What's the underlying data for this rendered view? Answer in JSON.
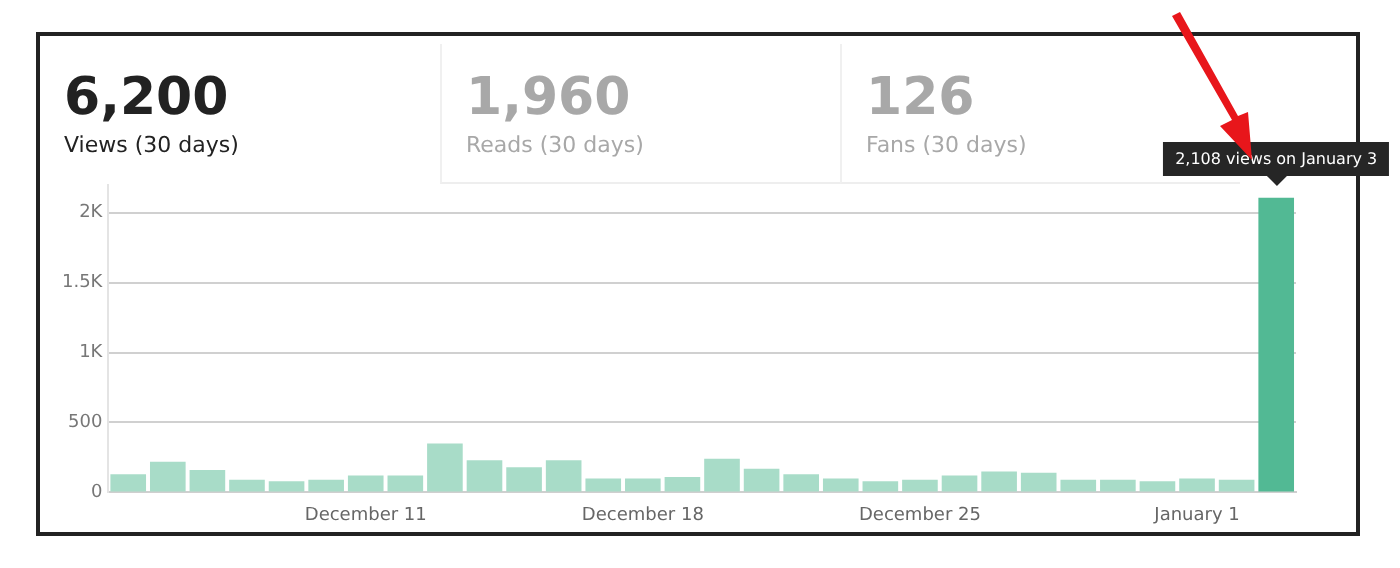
{
  "chart_data": [
    {
      "type": "other",
      "annotations": [
        "6,200",
        "Views (30 days)",
        "1,960",
        "Reads (30 days)",
        "126",
        "Fans (30 days)"
      ]
    },
    {
      "type": "bar",
      "categories": [
        null,
        null,
        null,
        null,
        null,
        null,
        "December 11",
        null,
        null,
        null,
        null,
        null,
        null,
        "December 18",
        null,
        null,
        null,
        null,
        null,
        null,
        "December 25",
        null,
        null,
        null,
        null,
        null,
        null,
        "January 1",
        null,
        null
      ],
      "values": [
        130,
        220,
        160,
        90,
        80,
        90,
        120,
        120,
        350,
        230,
        180,
        230,
        100,
        100,
        110,
        240,
        170,
        130,
        100,
        80,
        90,
        120,
        150,
        140,
        90,
        90,
        80,
        100,
        90,
        2108
      ],
      "colors": [
        "#a8dcc8",
        "#a8dcc8",
        "#a8dcc8",
        "#a8dcc8",
        "#a8dcc8",
        "#a8dcc8",
        "#a8dcc8",
        "#a8dcc8",
        "#a8dcc8",
        "#a8dcc8",
        "#a8dcc8",
        "#a8dcc8",
        "#a8dcc8",
        "#a8dcc8",
        "#a8dcc8",
        "#a8dcc8",
        "#a8dcc8",
        "#a8dcc8",
        "#a8dcc8",
        "#a8dcc8",
        "#a8dcc8",
        "#a8dcc8",
        "#a8dcc8",
        "#a8dcc8",
        "#a8dcc8",
        "#a8dcc8",
        "#a8dcc8",
        "#a8dcc8",
        "#a8dcc8",
        "#52b994"
      ],
      "ylim": [
        0,
        2200
      ],
      "yticks": [
        0,
        500,
        {
          "value": 1000,
          "label": "1K"
        },
        {
          "value": 1500,
          "label": "1.5K"
        },
        {
          "value": 2000,
          "label": "2K"
        }
      ],
      "grid": "y",
      "legend": false,
      "annotations": [
        {
          "text": "2,108 views on January 3",
          "y": 2108
        }
      ]
    }
  ]
}
